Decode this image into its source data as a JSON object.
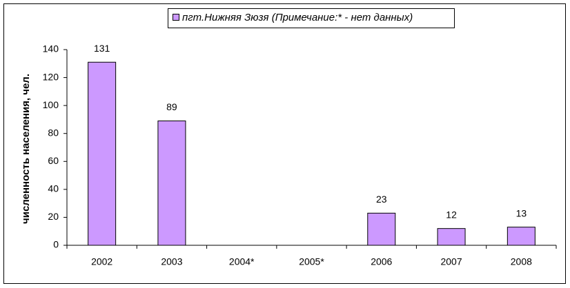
{
  "chart_data": {
    "type": "bar",
    "y_label": "численность населения, чел.",
    "categories": [
      "2002",
      "2003",
      "2004*",
      "2005*",
      "2006",
      "2007",
      "2008"
    ],
    "series": [
      {
        "name": "пгт.Нижняя Зюзя (Примечание:* - нет данных)",
        "color": "#cc99ff",
        "values": [
          131,
          89,
          null,
          null,
          23,
          12,
          13
        ]
      }
    ],
    "ylim": [
      0,
      140
    ],
    "yticks": [
      0,
      20,
      40,
      60,
      80,
      100,
      120,
      140
    ],
    "legend": "top",
    "data_labels": true
  }
}
